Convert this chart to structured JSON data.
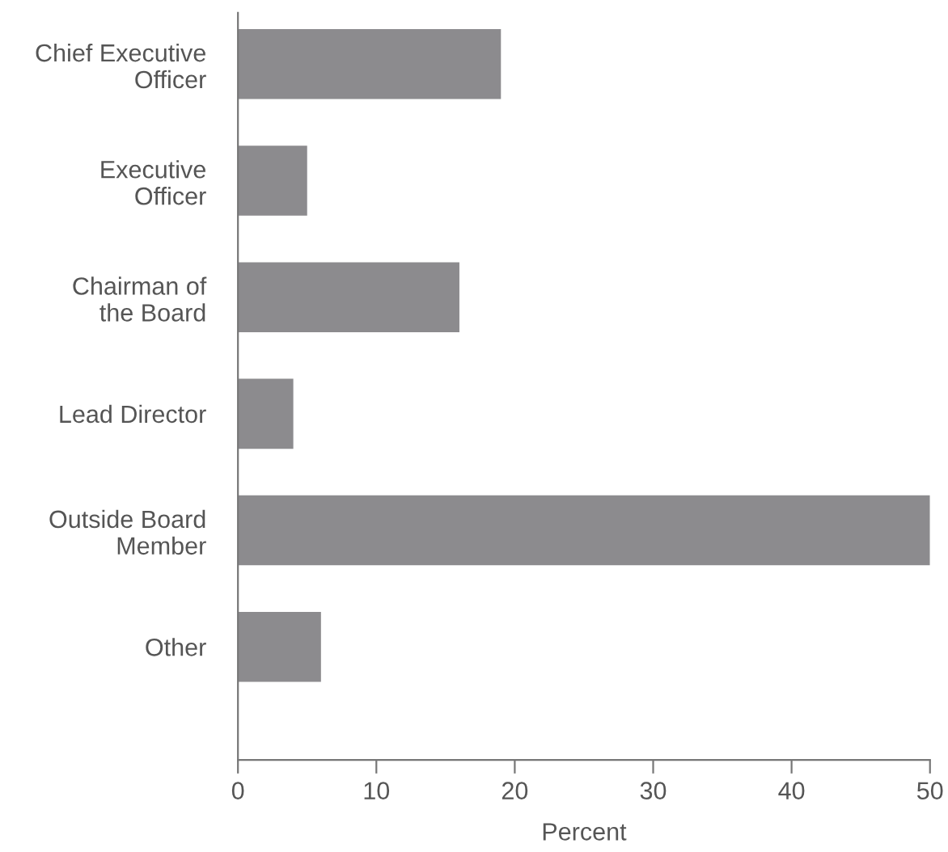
{
  "chart_data": {
    "type": "bar",
    "orientation": "horizontal",
    "xlabel": "Percent",
    "categories": [
      "Chief Executive\nOfficer",
      "Executive\nOfficer",
      "Chairman of\nthe Board",
      "Lead Director",
      "Outside Board\nMember",
      "Other"
    ],
    "values": [
      19,
      5,
      16,
      4,
      50,
      6
    ],
    "color": "#8c8b8e",
    "xlim": [
      0,
      50
    ],
    "xticks": [
      0,
      10,
      20,
      30,
      40,
      50
    ],
    "grid": false,
    "legend": false
  }
}
